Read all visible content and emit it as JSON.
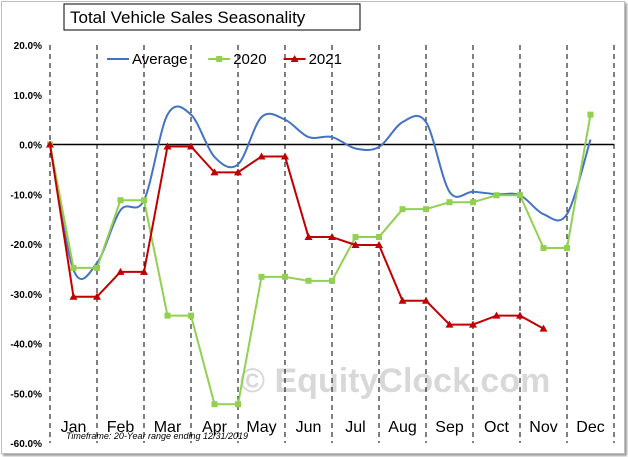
{
  "chart_data": {
    "type": "line",
    "title": "Total Vehicle Sales Seasonality",
    "xlabel": "",
    "ylabel": "",
    "categories": [
      "Jan",
      "Feb",
      "Mar",
      "Apr",
      "May",
      "Jun",
      "Jul",
      "Aug",
      "Sep",
      "Oct",
      "Nov",
      "Dec"
    ],
    "ylim": [
      -60,
      20
    ],
    "yticks": [
      "20.0%",
      "10.0%",
      "0.0%",
      "-10.0%",
      "-20.0%",
      "-30.0%",
      "-40.0%",
      "-50.0%",
      "-60.0%"
    ],
    "legend_position": "top-left",
    "grid": "vertical dashed at month boundaries",
    "series": [
      {
        "name": "Average",
        "color": "#4472c4",
        "marker": "none",
        "x": [
          0,
          0.5,
          1.0,
          1.5,
          2.0,
          2.5,
          3.0,
          3.5,
          4.0,
          4.5,
          5.0,
          5.5,
          6.0,
          6.5,
          7.0,
          7.5,
          8.0,
          8.5,
          9.0,
          9.5,
          10.0,
          10.5,
          11.0,
          11.5
        ],
        "y": [
          0,
          -25.2,
          -23.8,
          -13.2,
          -11.2,
          6.0,
          6.0,
          -2.5,
          -4.0,
          5.5,
          5.0,
          1.5,
          1.5,
          -0.8,
          -0.5,
          4.5,
          4.5,
          -9.5,
          -9.5,
          -10.0,
          -10.2,
          -14.0,
          -14.0,
          1.0
        ]
      },
      {
        "name": "2020",
        "color": "#92d050",
        "marker": "square",
        "x": [
          0,
          0.5,
          1.0,
          1.5,
          2.0,
          2.5,
          3.0,
          3.5,
          4.0,
          4.5,
          5.0,
          5.5,
          6.0,
          6.5,
          7.0,
          7.5,
          8.0,
          8.5,
          9.0,
          9.5,
          10.0,
          10.5,
          11.0,
          11.5
        ],
        "y": [
          0,
          -24.8,
          -24.8,
          -11.2,
          -11.2,
          -34.4,
          -34.4,
          -52.2,
          -52.2,
          -26.6,
          -26.6,
          -27.4,
          -27.4,
          -18.6,
          -18.6,
          -13.0,
          -13.0,
          -11.6,
          -11.6,
          -10.2,
          -10.2,
          -20.8,
          -20.8,
          6.0
        ]
      },
      {
        "name": "2021",
        "color": "#c00000",
        "marker": "triangle",
        "x": [
          0,
          0.5,
          1.0,
          1.5,
          2.0,
          2.5,
          3.0,
          3.5,
          4.0,
          4.5,
          5.0,
          5.5,
          6.0,
          6.5,
          7.0,
          7.5,
          8.0,
          8.5,
          9.0,
          9.5,
          10.0,
          10.5
        ],
        "y": [
          0,
          -30.6,
          -30.6,
          -25.6,
          -25.6,
          -0.4,
          -0.4,
          -5.6,
          -5.6,
          -2.4,
          -2.4,
          -18.6,
          -18.6,
          -20.2,
          -20.2,
          -31.4,
          -31.4,
          -36.2,
          -36.2,
          -34.4,
          -34.4,
          -37.0
        ]
      }
    ],
    "footnote": "Timeframe: 20-Year range ending 12/31/2019",
    "watermark": "© EquityClock.com"
  }
}
